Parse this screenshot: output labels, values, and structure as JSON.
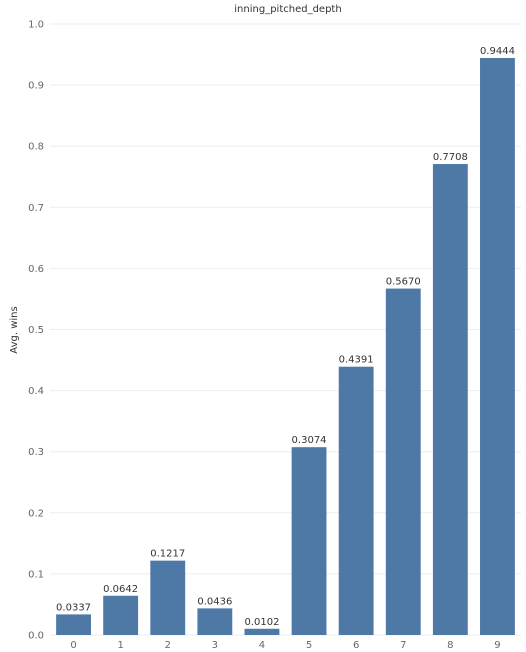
{
  "chart_data": {
    "type": "bar",
    "title": "inning_pitched_depth",
    "xlabel": "",
    "ylabel": "Avg. wins",
    "categories": [
      "0",
      "1",
      "2",
      "3",
      "4",
      "5",
      "6",
      "7",
      "8",
      "9"
    ],
    "values": [
      0.0337,
      0.0642,
      0.1217,
      0.0436,
      0.0102,
      0.3074,
      0.4391,
      0.567,
      0.7708,
      0.9444
    ],
    "data_labels": [
      "0.0337",
      "0.0642",
      "0.1217",
      "0.0436",
      "0.0102",
      "0.3074",
      "0.4391",
      "0.5670",
      "0.7708",
      "0.9444"
    ],
    "ylim": [
      0,
      1.0
    ],
    "yticks": [
      "0.0",
      "0.1",
      "0.2",
      "0.3",
      "0.4",
      "0.5",
      "0.6",
      "0.7",
      "0.8",
      "0.9",
      "1.0"
    ],
    "grid": true,
    "legend": "none",
    "colors": {
      "bar": "#4e79a7",
      "grid": "#eeeeee",
      "text": "#333333",
      "tick": "#666666"
    }
  }
}
